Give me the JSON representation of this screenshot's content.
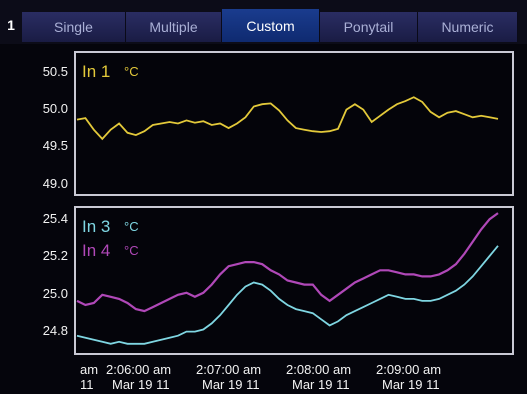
{
  "tabs": {
    "index": "1",
    "items": [
      "Single",
      "Multiple",
      "Custom",
      "Ponytail",
      "Numeric"
    ],
    "active": "Custom"
  },
  "colors": {
    "frame": "#c9c9d4",
    "yellow": "#e3c93a",
    "cyan": "#7fd6e2",
    "magenta": "#b048b8",
    "tab_bg": "#23265a",
    "tab_active": "#14348a"
  },
  "chart_data": [
    {
      "type": "line",
      "ylim": [
        48.9,
        50.7
      ],
      "y_ticks": [
        "50.5",
        "50.0",
        "49.5",
        "49.0"
      ],
      "legend": [
        {
          "name": "In 1",
          "unit": "°C"
        }
      ],
      "series": [
        {
          "name": "In 1",
          "x": [
            0,
            2,
            4,
            6,
            8,
            10,
            12,
            14,
            16,
            18,
            20,
            22,
            24,
            26,
            28,
            30,
            32,
            34,
            36,
            38,
            40,
            42,
            44,
            46,
            48,
            50,
            52,
            54,
            56,
            58,
            60,
            62,
            64,
            66,
            68,
            70,
            72,
            74,
            76,
            78,
            80,
            82,
            84,
            86,
            88,
            90,
            92,
            94,
            96,
            98,
            100
          ],
          "values": [
            49.85,
            49.87,
            49.72,
            49.6,
            49.72,
            49.8,
            49.68,
            49.65,
            49.7,
            49.78,
            49.8,
            49.82,
            49.8,
            49.84,
            49.81,
            49.83,
            49.78,
            49.8,
            49.74,
            49.8,
            49.88,
            50.02,
            50.05,
            50.06,
            49.97,
            49.84,
            49.74,
            49.72,
            49.7,
            49.69,
            49.7,
            49.73,
            49.98,
            50.05,
            49.98,
            49.82,
            49.9,
            49.98,
            50.05,
            50.09,
            50.14,
            50.08,
            49.95,
            49.88,
            49.94,
            49.96,
            49.92,
            49.88,
            49.9,
            49.88,
            49.86
          ]
        }
      ]
    },
    {
      "type": "line",
      "ylim": [
        24.72,
        25.42
      ],
      "y_ticks": [
        "25.4",
        "25.2",
        "25.0",
        "24.8"
      ],
      "x_ticks": [
        {
          "time": "am",
          "date": "11"
        },
        {
          "time": "2:06:00 am",
          "date": "Mar 19 11"
        },
        {
          "time": "2:07:00 am",
          "date": "Mar 19 11"
        },
        {
          "time": "2:08:00 am",
          "date": "Mar 19 11"
        },
        {
          "time": "2:09:00 am",
          "date": "Mar 19 11"
        }
      ],
      "legend": [
        {
          "name": "In 3",
          "unit": "°C"
        },
        {
          "name": "In 4",
          "unit": "°C"
        }
      ],
      "series": [
        {
          "name": "In 3",
          "x": [
            0,
            2,
            4,
            6,
            8,
            10,
            12,
            14,
            16,
            18,
            20,
            22,
            24,
            26,
            28,
            30,
            32,
            34,
            36,
            38,
            40,
            42,
            44,
            46,
            48,
            50,
            52,
            54,
            56,
            58,
            60,
            62,
            64,
            66,
            68,
            70,
            72,
            74,
            76,
            78,
            80,
            82,
            84,
            86,
            88,
            90,
            92,
            94,
            96,
            98,
            100
          ],
          "values": [
            24.8,
            24.79,
            24.78,
            24.77,
            24.76,
            24.77,
            24.76,
            24.76,
            24.76,
            24.77,
            24.78,
            24.79,
            24.8,
            24.82,
            24.82,
            24.83,
            24.86,
            24.9,
            24.95,
            25.0,
            25.04,
            25.06,
            25.05,
            25.02,
            24.98,
            24.95,
            24.93,
            24.92,
            24.91,
            24.88,
            24.85,
            24.87,
            24.9,
            24.92,
            24.94,
            24.96,
            24.98,
            25.0,
            24.99,
            24.98,
            24.98,
            24.97,
            24.97,
            24.98,
            25.0,
            25.02,
            25.05,
            25.09,
            25.14,
            25.19,
            25.24
          ]
        },
        {
          "name": "In 4",
          "x": [
            0,
            2,
            4,
            6,
            8,
            10,
            12,
            14,
            16,
            18,
            20,
            22,
            24,
            26,
            28,
            30,
            32,
            34,
            36,
            38,
            40,
            42,
            44,
            46,
            48,
            50,
            52,
            54,
            56,
            58,
            60,
            62,
            64,
            66,
            68,
            70,
            72,
            74,
            76,
            78,
            80,
            82,
            84,
            86,
            88,
            90,
            92,
            94,
            96,
            98,
            100
          ],
          "values": [
            24.97,
            24.95,
            24.96,
            25.0,
            24.99,
            24.98,
            24.96,
            24.93,
            24.92,
            24.94,
            24.96,
            24.98,
            25.0,
            25.01,
            24.99,
            25.01,
            25.05,
            25.1,
            25.14,
            25.15,
            25.16,
            25.16,
            25.15,
            25.12,
            25.1,
            25.07,
            25.06,
            25.05,
            25.05,
            25.0,
            24.97,
            25.0,
            25.03,
            25.06,
            25.08,
            25.1,
            25.12,
            25.12,
            25.11,
            25.1,
            25.1,
            25.09,
            25.09,
            25.1,
            25.12,
            25.15,
            25.2,
            25.26,
            25.32,
            25.37,
            25.4
          ]
        }
      ]
    }
  ]
}
